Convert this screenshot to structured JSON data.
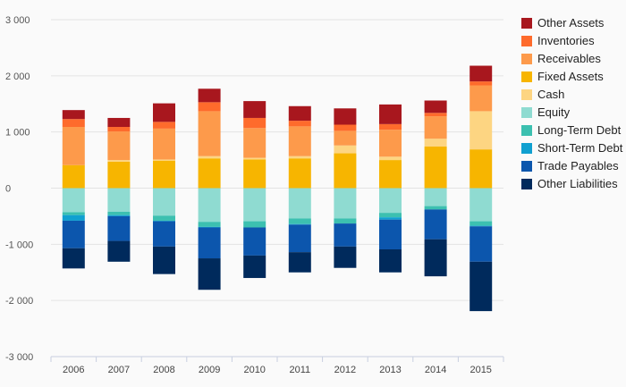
{
  "chart_data": {
    "type": "bar",
    "stacked": true,
    "categories": [
      "2006",
      "2007",
      "2008",
      "2009",
      "2010",
      "2011",
      "2012",
      "2013",
      "2014",
      "2015"
    ],
    "y_ticks": [
      "3 000",
      "2 000",
      "1 000",
      "0",
      "-1 000",
      "-2 000",
      "-3 000"
    ],
    "ylim": [
      -3000,
      3000
    ],
    "grid": true,
    "legend_position": "right",
    "assets": [
      {
        "name": "Fixed Assets",
        "color": "#f7b500",
        "values": [
          410,
          470,
          490,
          530,
          510,
          530,
          620,
          500,
          740,
          690
        ]
      },
      {
        "name": "Cash",
        "color": "#fdd582",
        "values": [
          0,
          30,
          20,
          40,
          30,
          40,
          140,
          60,
          140,
          680
        ]
      },
      {
        "name": "Receivables",
        "color": "#fd9a4b",
        "values": [
          680,
          510,
          550,
          800,
          530,
          530,
          260,
          480,
          400,
          460
        ]
      },
      {
        "name": "Inventories",
        "color": "#fe6b2c",
        "values": [
          140,
          80,
          120,
          160,
          180,
          100,
          110,
          100,
          60,
          70
        ]
      },
      {
        "name": "Other Assets",
        "color": "#a8171e",
        "values": [
          160,
          160,
          330,
          240,
          300,
          260,
          290,
          350,
          220,
          280
        ]
      }
    ],
    "liabilities": [
      {
        "name": "Equity",
        "color": "#8fdbd1",
        "values": [
          -430,
          -420,
          -490,
          -600,
          -590,
          -540,
          -540,
          -440,
          -320,
          -590
        ]
      },
      {
        "name": "Long-Term Debt",
        "color": "#3cc0b0",
        "values": [
          -50,
          -60,
          -90,
          -90,
          -110,
          -100,
          -90,
          -80,
          -60,
          -80
        ]
      },
      {
        "name": "Short-Term Debt",
        "color": "#10a0d0",
        "values": [
          -100,
          -20,
          -10,
          -10,
          0,
          -10,
          0,
          -40,
          0,
          -10
        ]
      },
      {
        "name": "Trade Payables",
        "color": "#0c56ad",
        "values": [
          -490,
          -440,
          -450,
          -550,
          -500,
          -490,
          -410,
          -530,
          -530,
          -630
        ]
      },
      {
        "name": "Other Liabilities",
        "color": "#002a5c",
        "values": [
          -360,
          -370,
          -490,
          -560,
          -400,
          -360,
          -380,
          -410,
          -660,
          -880
        ]
      }
    ],
    "legend": [
      "Other Assets",
      "Inventories",
      "Receivables",
      "Fixed Assets",
      "Cash",
      "Equity",
      "Long-Term Debt",
      "Short-Term Debt",
      "Trade Payables",
      "Other Liabilities"
    ]
  }
}
